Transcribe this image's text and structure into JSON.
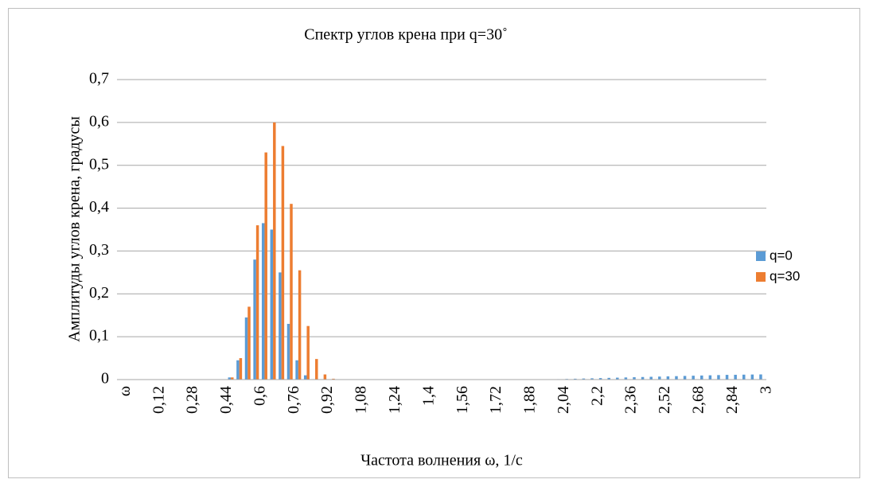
{
  "chart_data": {
    "type": "bar",
    "title": "Спектр углов крена при q=30˚",
    "x_label": "Частота волнения ω, 1/с",
    "y_label": "Амплитуды углов крена, градусы",
    "categories": [
      "ω",
      null,
      null,
      null,
      "0,12",
      null,
      null,
      null,
      "0,28",
      null,
      null,
      null,
      "0,44",
      null,
      null,
      null,
      "0,6",
      null,
      null,
      null,
      "0,76",
      null,
      null,
      null,
      "0,92",
      null,
      null,
      null,
      "1,08",
      null,
      null,
      null,
      "1,24",
      null,
      null,
      null,
      "1,4",
      null,
      null,
      null,
      "1,56",
      null,
      null,
      null,
      "1,72",
      null,
      null,
      null,
      "1,88",
      null,
      null,
      null,
      "2,04",
      null,
      null,
      null,
      "2,2",
      null,
      null,
      null,
      "2,36",
      null,
      null,
      null,
      "2,52",
      null,
      null,
      null,
      "2,68",
      null,
      null,
      null,
      "2,84",
      null,
      null,
      null,
      "3"
    ],
    "series": [
      {
        "name": "q=0",
        "color": "#5b9bd5",
        "values": [
          0,
          0,
          0,
          0,
          0,
          0,
          0,
          0,
          0,
          0,
          0,
          0,
          0,
          0.005,
          0.045,
          0.145,
          0.28,
          0.365,
          0.35,
          0.25,
          0.13,
          0.045,
          0.01,
          0.001,
          0,
          0,
          0,
          0,
          0,
          0,
          0,
          0,
          0,
          0,
          0,
          0,
          0,
          0,
          0,
          0,
          0,
          0,
          0,
          0,
          0,
          0,
          0,
          0,
          0,
          0,
          0,
          0,
          0.001,
          0.0015,
          0.002,
          0.0025,
          0.003,
          0.0035,
          0.004,
          0.0045,
          0.005,
          0.0055,
          0.006,
          0.0065,
          0.007,
          0.0075,
          0.008,
          0.0085,
          0.009,
          0.0095,
          0.01,
          0.0105,
          0.011,
          0.0112,
          0.0115,
          0.0118,
          0.012
        ]
      },
      {
        "name": "q=30",
        "color": "#ed7d31",
        "values": [
          0,
          0,
          0,
          0,
          0,
          0,
          0,
          0,
          0,
          0,
          0,
          0,
          0,
          0.005,
          0.05,
          0.17,
          0.36,
          0.53,
          0.6,
          0.545,
          0.41,
          0.255,
          0.125,
          0.048,
          0.012,
          0.002,
          0,
          0,
          0,
          0,
          0,
          0,
          0,
          0,
          0,
          0,
          0,
          0,
          0,
          0,
          0,
          0,
          0,
          0,
          0,
          0,
          0,
          0,
          0,
          0,
          0,
          0,
          0,
          0,
          0,
          0,
          0,
          0,
          0,
          0,
          0,
          0,
          0,
          0,
          0,
          0,
          0,
          0,
          0,
          0,
          0,
          0,
          0,
          0,
          0,
          0,
          0
        ]
      }
    ],
    "ylim": [
      0,
      0.7
    ],
    "yticks": [
      0,
      {
        "value": 0.1,
        "label": "0,1"
      },
      {
        "value": 0.2,
        "label": "0,2"
      },
      {
        "value": 0.3,
        "label": "0,3"
      },
      {
        "value": 0.4,
        "label": "0,4"
      },
      {
        "value": 0.5,
        "label": "0,5"
      },
      {
        "value": 0.6,
        "label": "0,6"
      },
      {
        "value": 0.7,
        "label": "0,7"
      }
    ],
    "grid": true,
    "legend": "right"
  }
}
